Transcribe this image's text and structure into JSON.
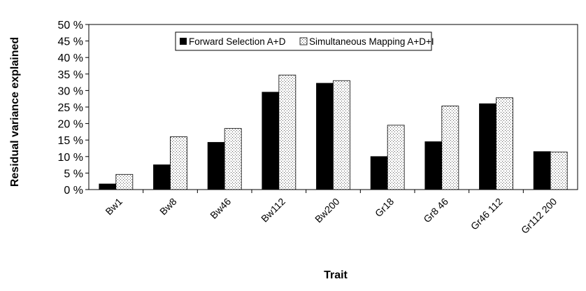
{
  "chart_data": {
    "type": "bar",
    "xlabel": "Trait",
    "ylabel": "Residual variance explained",
    "ylim": [
      0,
      50
    ],
    "yticks": [
      "0 %",
      "5 %",
      "10 %",
      "15 %",
      "20 %",
      "25 %",
      "30 %",
      "35 %",
      "40 %",
      "45 %",
      "50 %"
    ],
    "grid": false,
    "legend_position": "top-center",
    "categories": [
      "Bw1",
      "Bw8",
      "Bw46",
      "Bw112",
      "Bw200",
      "Gr18",
      "Gr8 46",
      "Gr46 112",
      "Gr112 200"
    ],
    "series": [
      {
        "name": "Forward Selection A+D",
        "color": "#000000",
        "pattern": "solid",
        "values": [
          1.7,
          7.5,
          14.3,
          29.5,
          32.2,
          10.0,
          14.5,
          26.0,
          11.5
        ]
      },
      {
        "name": "Simultaneous Mapping A+D+I",
        "color": "#ffffff",
        "pattern": "dotted",
        "values": [
          4.6,
          16.0,
          18.5,
          34.7,
          33.0,
          19.5,
          25.3,
          27.8,
          11.4
        ]
      }
    ]
  }
}
